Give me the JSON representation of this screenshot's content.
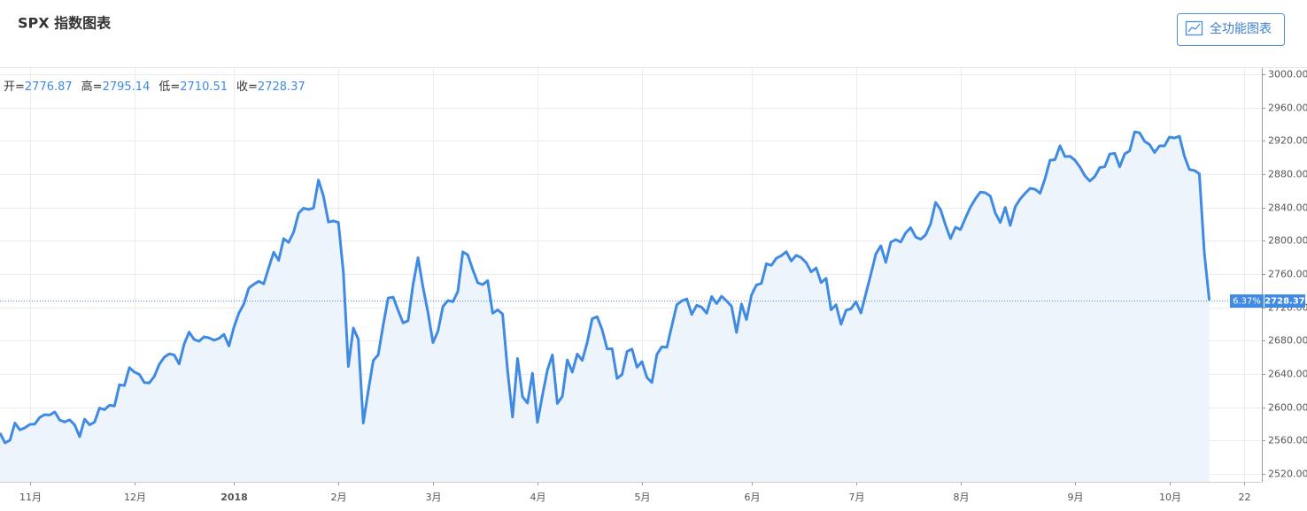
{
  "header": {
    "title": "SPX 指数图表",
    "button": "全功能图表"
  },
  "ohlc": [
    {
      "label": "开=",
      "value": 2776.87
    },
    {
      "label": "高=",
      "value": 2795.14
    },
    {
      "label": "低=",
      "value": 2710.51
    },
    {
      "label": "收="
    }
  ],
  "price_tag": {
    "change": "6.37%"
  },
  "chart_data": {
    "type": "line",
    "categories": [
      null,
      null,
      null,
      null,
      null,
      null,
      "11月",
      null,
      null,
      null,
      null,
      null,
      null,
      null,
      null,
      null,
      null,
      null,
      null,
      null,
      null,
      null,
      null,
      null,
      null,
      null,
      null,
      "12月",
      null,
      null,
      null,
      null,
      null,
      null,
      null,
      null,
      null,
      null,
      null,
      null,
      null,
      null,
      null,
      null,
      null,
      null,
      null,
      "2018",
      null,
      null,
      null,
      null,
      null,
      null,
      null,
      null,
      null,
      null,
      null,
      null,
      null,
      null,
      null,
      null,
      null,
      null,
      null,
      null,
      "2月",
      null,
      null,
      null,
      null,
      null,
      null,
      null,
      null,
      null,
      null,
      null,
      null,
      null,
      null,
      null,
      null,
      null,
      null,
      "3月",
      null,
      null,
      null,
      null,
      null,
      null,
      null,
      null,
      null,
      null,
      null,
      null,
      null,
      null,
      null,
      null,
      null,
      null,
      null,
      null,
      "4月",
      null,
      null,
      null,
      null,
      null,
      null,
      null,
      null,
      null,
      null,
      null,
      null,
      null,
      null,
      null,
      null,
      null,
      null,
      null,
      null,
      "5月",
      null,
      null,
      null,
      null,
      null,
      null,
      null,
      null,
      null,
      null,
      null,
      null,
      null,
      null,
      null,
      null,
      null,
      null,
      null,
      null,
      null,
      "6月",
      null,
      null,
      null,
      null,
      null,
      null,
      null,
      null,
      null,
      null,
      null,
      null,
      null,
      null,
      null,
      null,
      null,
      null,
      null,
      null,
      "7月",
      null,
      null,
      null,
      null,
      null,
      null,
      null,
      null,
      null,
      null,
      null,
      null,
      null,
      null,
      null,
      null,
      null,
      null,
      null,
      null,
      "8月",
      null,
      null,
      null,
      null,
      null,
      null,
      null,
      null,
      null,
      null,
      null,
      null,
      null,
      null,
      null,
      null,
      null,
      null,
      null,
      null,
      null,
      null,
      "9月",
      null,
      null,
      null,
      null,
      null,
      null,
      null,
      null,
      null,
      null,
      null,
      null,
      null,
      null,
      null,
      null,
      null,
      null,
      "10月",
      null,
      null,
      null,
      null,
      null,
      null,
      null,
      null,
      null,
      null,
      null,
      null,
      null,
      null,
      "22",
      null,
      null,
      null
    ],
    "series": [
      {
        "color": "#3f8ae2",
        "area_color": "#eef4fc",
        "values": [
          2569.13,
          2557.15,
          2560.4,
          2581.07,
          2572.83,
          2575.26,
          2579.36,
          2579.85,
          2587.84,
          2591.13,
          2590.64,
          2594.38,
          2584.62,
          2582.3,
          2584.84,
          2578.87,
          2564.62,
          2585.64,
          2578.85,
          2582.14,
          2599.03,
          2597.08,
          2602.42,
          2601.42,
          2627.04,
          2626.07,
          2647.58,
          2642.22,
          2639.44,
          2629.57,
          2629.27,
          2636.98,
          2651.5,
          2659.99,
          2664.11,
          2662.85,
          2652.01,
          2675.81,
          2690.16,
          2681.47,
          2679.25,
          2684.57,
          2683.34,
          2680.5,
          2682.62,
          2687.54,
          2673.61,
          2695.81,
          2713.06,
          2723.99,
          2743.15,
          2747.71,
          2751.29,
          2748.23,
          2767.56,
          2786.24,
          2776.42,
          2802.56,
          2798.03,
          2810.3,
          2832.97,
          2839.13,
          2837.54,
          2839.25,
          2872.87,
          2853.53,
          2822.43,
          2823.81,
          2821.98,
          2762.13,
          2648.94,
          2695.14,
          2681.66,
          2581.0,
          2619.55,
          2656.0,
          2662.94,
          2698.63,
          2731.2,
          2732.22,
          2716.26,
          2701.33,
          2703.96,
          2747.3,
          2779.6,
          2744.28,
          2713.83,
          2677.67,
          2691.25,
          2720.94,
          2728.12,
          2726.8,
          2738.97,
          2786.57,
          2783.02,
          2765.31,
          2749.48,
          2747.33,
          2752.01,
          2712.92,
          2716.94,
          2711.93,
          2643.69,
          2588.26,
          2658.55,
          2612.62,
          2605.0,
          2640.87,
          2581.88,
          2614.45,
          2644.69,
          2662.84,
          2604.47,
          2613.16,
          2656.87,
          2642.19,
          2663.99,
          2656.3,
          2677.84,
          2706.39,
          2708.64,
          2693.13,
          2670.14,
          2670.29,
          2634.56,
          2639.4,
          2666.94,
          2669.91,
          2648.05,
          2654.8,
          2635.67,
          2629.73,
          2663.42,
          2672.63,
          2671.92,
          2697.79,
          2723.07,
          2727.72,
          2730.13,
          2711.45,
          2722.46,
          2720.13,
          2712.97,
          2733.01,
          2724.44,
          2733.29,
          2727.76,
          2721.33,
          2689.86,
          2724.01,
          2705.27,
          2734.62,
          2746.87,
          2748.8,
          2772.35,
          2770.37,
          2779.03,
          2782.0,
          2786.85,
          2775.63,
          2782.49,
          2779.66,
          2773.75,
          2762.59,
          2767.32,
          2749.76,
          2754.88,
          2717.07,
          2723.06,
          2699.63,
          2716.31,
          2718.37,
          2726.71,
          2713.22,
          2736.61,
          2759.82,
          2784.17,
          2793.84,
          2774.02,
          2798.29,
          2801.31,
          2798.43,
          2809.55,
          2815.62,
          2804.49,
          2801.83,
          2806.98,
          2820.4,
          2846.07,
          2837.44,
          2818.82,
          2802.6,
          2816.29,
          2813.36,
          2827.22,
          2840.35,
          2850.4,
          2858.45,
          2857.7,
          2853.58,
          2833.28,
          2821.93,
          2839.96,
          2818.37,
          2840.69,
          2850.13,
          2857.05,
          2862.96,
          2861.82,
          2856.98,
          2874.69,
          2896.74,
          2897.52,
          2914.04,
          2901.13,
          2901.52,
          2896.72,
          2888.6,
          2878.05,
          2871.68,
          2877.13,
          2887.89,
          2888.92,
          2904.18,
          2904.98,
          2888.8,
          2904.31,
          2907.95,
          2930.75,
          2929.67,
          2919.37,
          2915.56,
          2905.97,
          2914.0,
          2913.98,
          2924.59,
          2923.43,
          2925.51,
          2901.61,
          2885.57,
          2884.43,
          2880.34,
          2785.68,
          2728.37,
          null,
          null,
          null,
          null,
          null,
          null,
          null,
          null,
          null,
          null
        ]
      }
    ],
    "ylim": [
      2510.4,
      3007.4
    ],
    "yticks": [
      {
        "value": 2520,
        "label": "2520.00"
      },
      {
        "value": 2560,
        "label": "2560.00"
      },
      {
        "value": 2600,
        "label": "2600.00"
      },
      {
        "value": 2640,
        "label": "2640.00"
      },
      {
        "value": 2680,
        "label": "2680.00"
      },
      {
        "value": 2720,
        "label": "2720.00"
      },
      {
        "value": 2760,
        "label": "2760.00"
      },
      {
        "value": 2800,
        "label": "2800.00"
      },
      {
        "value": 2840,
        "label": "2840.00"
      },
      {
        "value": 2880,
        "label": "2880.00"
      },
      {
        "value": 2920,
        "label": "2920.00"
      },
      {
        "value": 2960,
        "label": "2960.00"
      },
      {
        "value": 3000,
        "label": "3000.00"
      }
    ],
    "grid": true,
    "yaxis_side": "right"
  }
}
